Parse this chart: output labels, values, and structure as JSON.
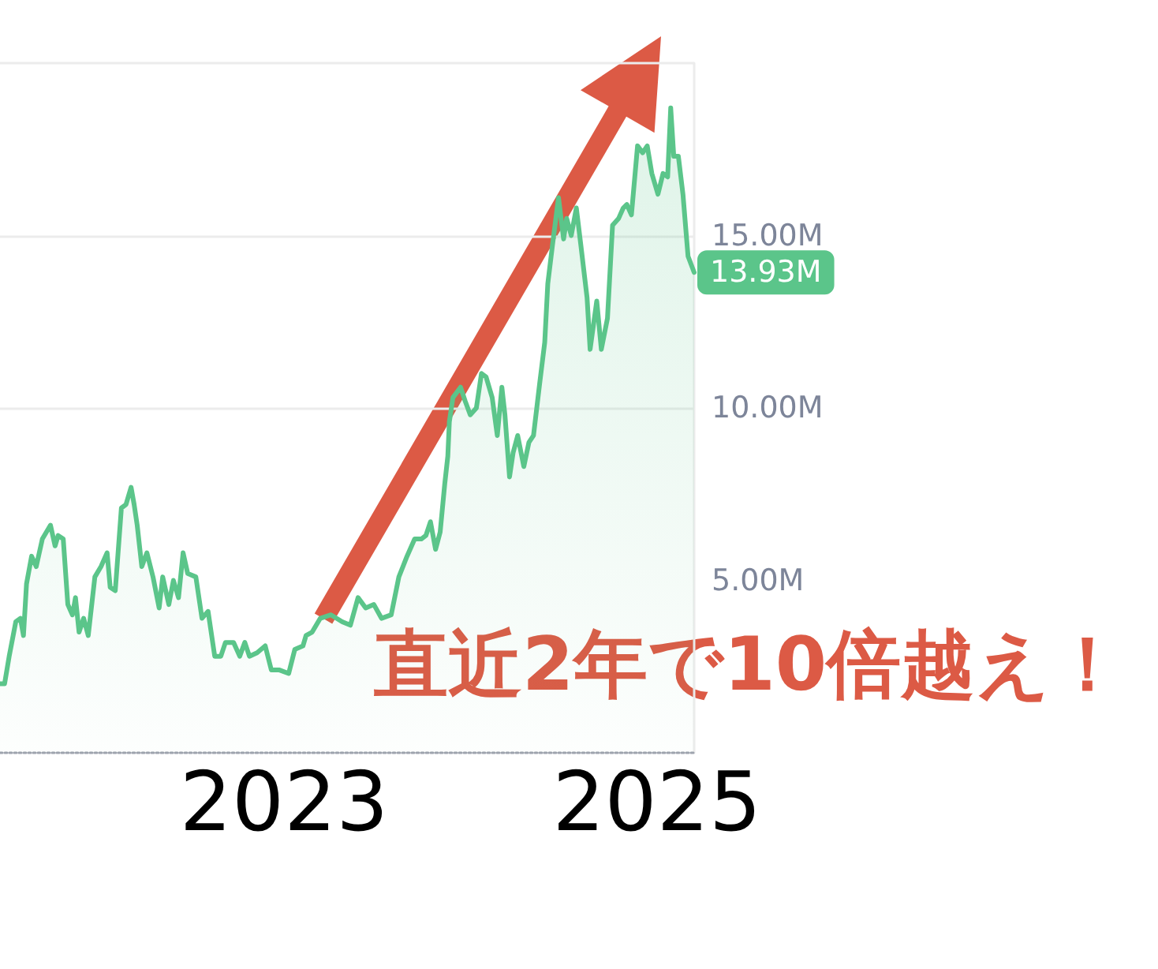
{
  "chart_data": {
    "type": "area",
    "color": "#5bc58a",
    "x": [
      "2021-06-23",
      "2021-07-02",
      "2021-07-11",
      "2021-07-24",
      "2021-08-02",
      "2021-08-08",
      "2021-08-14",
      "2021-08-24",
      "2021-09-02",
      "2021-09-14",
      "2021-09-30",
      "2021-10-09",
      "2021-10-15",
      "2021-10-25",
      "2021-11-03",
      "2021-11-12",
      "2021-11-18",
      "2021-11-25",
      "2021-12-04",
      "2021-12-13",
      "2021-12-26",
      "2022-01-07",
      "2022-01-19",
      "2022-01-25",
      "2022-02-04",
      "2022-02-16",
      "2022-02-25",
      "2022-03-07",
      "2022-03-13",
      "2022-03-19",
      "2022-03-28",
      "2022-04-07",
      "2022-04-19",
      "2022-05-01",
      "2022-05-08",
      "2022-05-20",
      "2022-05-29",
      "2022-06-08",
      "2022-06-17",
      "2022-06-26",
      "2022-07-12",
      "2022-07-24",
      "2022-08-05",
      "2022-08-18",
      "2022-08-30",
      "2022-09-08",
      "2022-09-24",
      "2022-10-06",
      "2022-10-16",
      "2022-10-25",
      "2022-11-09",
      "2022-11-25",
      "2022-12-07",
      "2022-12-23",
      "2023-01-10",
      "2023-01-22",
      "2023-02-07",
      "2023-02-13",
      "2023-02-25",
      "2023-03-13",
      "2023-04-03",
      "2023-04-25",
      "2023-05-11",
      "2023-05-26",
      "2023-06-10",
      "2023-06-26",
      "2023-07-11",
      "2023-07-30",
      "2023-08-14",
      "2023-08-30",
      "2023-09-14",
      "2023-09-27",
      "2023-10-06",
      "2023-10-15",
      "2023-10-25",
      "2023-11-03",
      "2023-11-12",
      "2023-11-18",
      "2023-11-21",
      "2023-11-28",
      "2023-12-13",
      "2023-12-22",
      "2024-01-01",
      "2024-01-13",
      "2024-01-23",
      "2024-02-01",
      "2024-02-13",
      "2024-02-23",
      "2024-03-03",
      "2024-03-09",
      "2024-03-18",
      "2024-03-25",
      "2024-04-03",
      "2024-04-15",
      "2024-04-25",
      "2024-05-04",
      "2024-05-16",
      "2024-05-26",
      "2024-06-01",
      "2024-06-10",
      "2024-06-22",
      "2024-07-02",
      "2024-07-08",
      "2024-07-17",
      "2024-07-27",
      "2024-08-05",
      "2024-08-17",
      "2024-08-23",
      "2024-09-05",
      "2024-09-14",
      "2024-09-26",
      "2024-10-06",
      "2024-10-18",
      "2024-10-27",
      "2024-11-03",
      "2024-11-12",
      "2024-11-24",
      "2024-12-04",
      "2024-12-13",
      "2024-12-22",
      "2025-01-03",
      "2025-01-13",
      "2025-01-22",
      "2025-01-28",
      "2025-02-03",
      "2025-02-12",
      "2025-02-21",
      "2025-03-03",
      "2025-03-15"
    ],
    "values": [
      2.0,
      2.0,
      2.8,
      3.8,
      3.9,
      3.4,
      4.9,
      5.7,
      5.4,
      6.2,
      6.6,
      6.0,
      6.3,
      6.2,
      4.3,
      4.0,
      4.5,
      3.5,
      3.9,
      3.4,
      5.1,
      5.4,
      5.8,
      4.8,
      4.7,
      7.1,
      7.2,
      7.7,
      7.2,
      6.6,
      5.4,
      5.8,
      5.1,
      4.2,
      5.1,
      4.3,
      5.0,
      4.5,
      5.8,
      5.2,
      5.1,
      3.9,
      4.1,
      2.8,
      2.8,
      3.2,
      3.2,
      2.8,
      3.2,
      2.8,
      2.9,
      3.1,
      2.4,
      2.4,
      2.3,
      3.0,
      3.1,
      3.4,
      3.5,
      3.9,
      4.0,
      3.8,
      3.7,
      4.5,
      4.2,
      4.3,
      3.9,
      4.0,
      5.1,
      5.7,
      6.2,
      6.2,
      6.3,
      6.7,
      5.9,
      6.4,
      7.8,
      8.6,
      9.6,
      10.3,
      10.6,
      10.2,
      9.8,
      10.0,
      11.0,
      10.9,
      10.3,
      9.2,
      10.6,
      9.8,
      8.0,
      8.7,
      9.2,
      8.3,
      9.0,
      9.2,
      10.7,
      11.9,
      13.6,
      14.7,
      16.1,
      14.9,
      15.5,
      15.0,
      15.8,
      14.7,
      13.2,
      11.7,
      13.1,
      11.7,
      12.6,
      15.3,
      15.5,
      15.8,
      15.9,
      15.6,
      17.6,
      17.4,
      17.6,
      16.8,
      16.2,
      16.8,
      16.7,
      18.7,
      17.3,
      17.3,
      16.2,
      14.4,
      13.93
    ],
    "xlim": [
      "2021-06-23",
      "2025-03-15"
    ],
    "xticks": [
      "2023",
      "2025"
    ],
    "ylim": [
      0,
      20
    ],
    "yticks": [
      {
        "value": 5,
        "label": "5.00M"
      },
      {
        "value": 10,
        "label": "10.00M"
      },
      {
        "value": 15,
        "label": "15.00M"
      },
      {
        "value": 20,
        "label": null
      }
    ],
    "grid": "y",
    "annotations": [
      {
        "text": "13.93M",
        "x": "2025-03-15",
        "y": 13.93
      },
      "直近2年で10倍越え！"
    ]
  }
}
